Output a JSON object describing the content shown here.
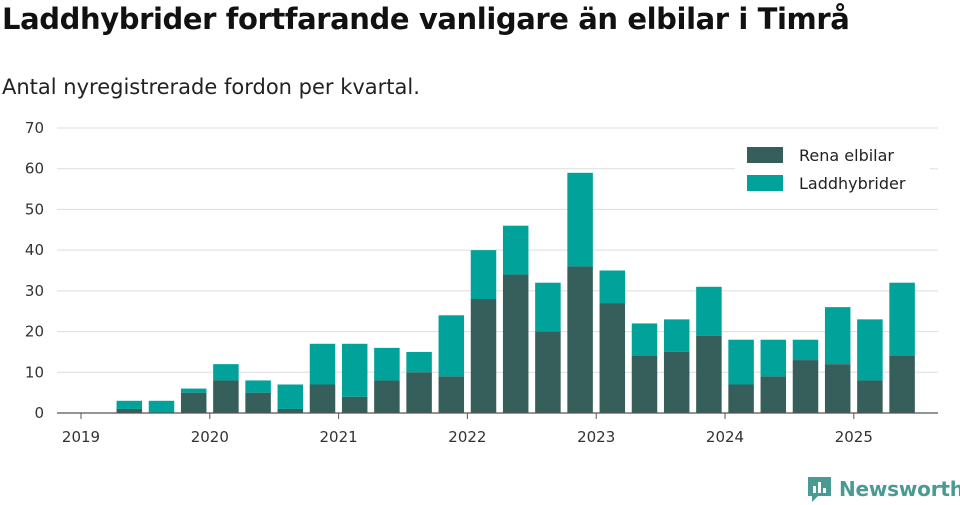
{
  "title": "Laddhybrider fortfarande vanligare än elbilar i Timrå",
  "subtitle": "Antal nyregistrerade fordon per kvartal.",
  "brand": {
    "name": "Newsworthy",
    "icon": "newsworthy-logo-icon"
  },
  "colors": {
    "rena_elbilar": "#365f5b",
    "laddhybrider": "#00a29a",
    "grid": "#dddddd",
    "axis": "#555555",
    "brand": "#4a9a94"
  },
  "chart_data": {
    "type": "bar",
    "stacked": true,
    "x_start_label": "2019",
    "x_tick_labels": [
      "2019",
      "2020",
      "2021",
      "2022",
      "2023",
      "2024",
      "2025"
    ],
    "categories": [
      "2019 Q2",
      "2019 Q3",
      "2019 Q4",
      "2020 Q1",
      "2020 Q2",
      "2020 Q3",
      "2020 Q4",
      "2021 Q1",
      "2021 Q2",
      "2021 Q3",
      "2021 Q4",
      "2022 Q1",
      "2022 Q2",
      "2022 Q3",
      "2022 Q4",
      "2023 Q1",
      "2023 Q2",
      "2023 Q3",
      "2023 Q4",
      "2024 Q1",
      "2024 Q2",
      "2024 Q3",
      "2024 Q4",
      "2025 Q1",
      "2025 Q2"
    ],
    "series": [
      {
        "name": "Rena elbilar",
        "color": "#365f5b",
        "values": [
          1,
          0,
          5,
          8,
          5,
          1,
          7,
          4,
          8,
          10,
          9,
          28,
          34,
          20,
          36,
          27,
          14,
          15,
          19,
          7,
          9,
          13,
          12,
          8,
          14
        ]
      },
      {
        "name": "Laddhybrider",
        "color": "#00a29a",
        "values": [
          2,
          3,
          1,
          4,
          3,
          6,
          10,
          13,
          8,
          5,
          15,
          12,
          12,
          12,
          23,
          8,
          8,
          8,
          12,
          11,
          9,
          5,
          14,
          15,
          18
        ]
      }
    ],
    "ylim": [
      0,
      70
    ],
    "y_ticks": [
      0,
      10,
      20,
      30,
      40,
      50,
      60,
      70
    ],
    "grid": true,
    "legend": "top-right",
    "xlabel": "",
    "ylabel": ""
  }
}
